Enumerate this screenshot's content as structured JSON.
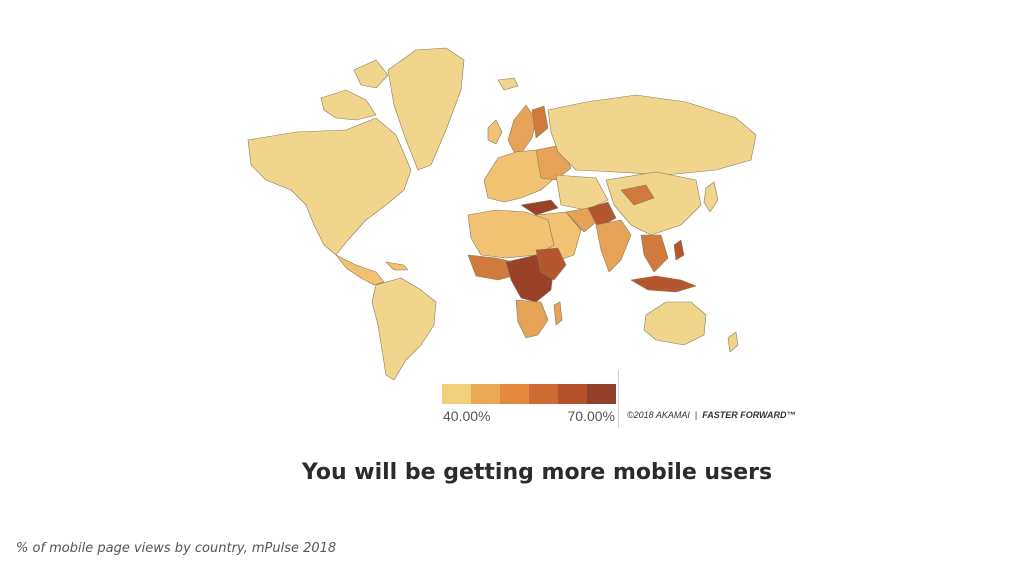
{
  "headline": "You will be getting more mobile users",
  "caption": "% of mobile page views by country, mPulse 2018",
  "legend": {
    "min_label": "40.00%",
    "max_label": "70.00%",
    "colors": [
      "#f2cf7c",
      "#eaa957",
      "#e48a3e",
      "#d06a34",
      "#b4522c",
      "#93402a"
    ]
  },
  "credit": {
    "copyright": "©2018 AKAMAI",
    "separator": "|",
    "brand": "FASTER FORWARD™"
  },
  "map_colors": {
    "base": "#f2d58c",
    "light": "#f0c272",
    "mid": "#e6a257",
    "strong": "#d07a3e",
    "dark": "#b4572f",
    "darkest": "#9a4129",
    "border": "#8a7a5a"
  }
}
